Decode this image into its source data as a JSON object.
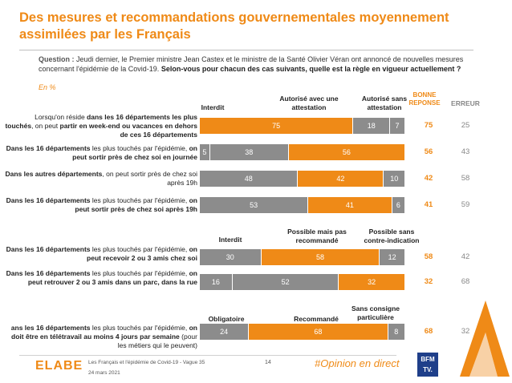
{
  "title": "Des mesures et recommandations gouvernementales moyennement assimilées par les Français",
  "question": {
    "label": "Question :",
    "context": " Jeudi dernier, le Premier ministre Jean Castex et le ministre de la Santé Olivier Véran ont annoncé de nouvelles mesures concernant l'épidémie de la Covid-19. ",
    "main": "Selon-vous pour chacun des cas suivants, quelle est la règle en vigueur actuellement ?"
  },
  "unit": "En %",
  "columns": {
    "correct": "BONNE REPONSE",
    "error": "ERREUR"
  },
  "colors": {
    "dark_gray": "#7f7f7f",
    "orange": "#ef8a17",
    "mid_gray": "#8c8c8c"
  },
  "chart_data": [
    {
      "type": "bar",
      "stacked": true,
      "orientation": "horizontal",
      "series_names": [
        "Interdit",
        "Autorisé avec une attestation",
        "Autorisé sans attestation"
      ],
      "rows": [
        {
          "label_parts": [
            {
              "t": "Lorsqu'on réside ",
              "b": false
            },
            {
              "t": "dans les 16 départements les plus touchés",
              "b": true
            },
            {
              "t": ", on peut ",
              "b": false
            },
            {
              "t": "partir en week-end ou vacances en dehors de ces 16 départements",
              "b": true
            }
          ],
          "values": [
            75,
            18,
            7
          ],
          "colors": [
            "#ef8a17",
            "#8c8c8c",
            "#8c8c8c"
          ],
          "correct": 75,
          "error": 25
        },
        {
          "label_parts": [
            {
              "t": "Dans les 16 départements",
              "b": true
            },
            {
              "t": " les plus touchés par l'épidémie, ",
              "b": false
            },
            {
              "t": "on peut sortir près de chez soi en journée",
              "b": true
            }
          ],
          "values": [
            5,
            38,
            56
          ],
          "colors": [
            "#8c8c8c",
            "#8c8c8c",
            "#ef8a17"
          ],
          "correct": 56,
          "error": 43
        },
        {
          "label_parts": [
            {
              "t": "Dans les autres départements",
              "b": true
            },
            {
              "t": ", on peut sortir près de chez soi après 19h",
              "b": false
            }
          ],
          "values": [
            48,
            42,
            10
          ],
          "colors": [
            "#8c8c8c",
            "#ef8a17",
            "#8c8c8c"
          ],
          "correct": 42,
          "error": 58
        },
        {
          "label_parts": [
            {
              "t": "Dans les 16 départements",
              "b": true
            },
            {
              "t": " les plus touchés par l'épidémie, ",
              "b": false
            },
            {
              "t": "on peut sortir près de chez soi après 19h",
              "b": true
            }
          ],
          "values": [
            53,
            41,
            6
          ],
          "colors": [
            "#8c8c8c",
            "#ef8a17",
            "#8c8c8c"
          ],
          "correct": 41,
          "error": 59
        }
      ]
    },
    {
      "type": "bar",
      "stacked": true,
      "orientation": "horizontal",
      "series_names": [
        "Interdit",
        "Possible mais pas recommandé",
        "Possible sans contre-indication"
      ],
      "rows": [
        {
          "label_parts": [
            {
              "t": "Dans les 16 départements",
              "b": true
            },
            {
              "t": " les plus touchés par l'épidémie, ",
              "b": false
            },
            {
              "t": "on peut recevoir 2 ou 3 amis chez soi",
              "b": true
            }
          ],
          "values": [
            30,
            58,
            12
          ],
          "colors": [
            "#8c8c8c",
            "#ef8a17",
            "#8c8c8c"
          ],
          "correct": 58,
          "error": 42
        },
        {
          "label_parts": [
            {
              "t": "Dans les 16 départements",
              "b": true
            },
            {
              "t": " les plus touchés par l'épidémie, ",
              "b": false
            },
            {
              "t": "on peut retrouver 2 ou 3 amis dans un parc, dans la rue",
              "b": true
            }
          ],
          "values": [
            16,
            52,
            32
          ],
          "colors": [
            "#8c8c8c",
            "#8c8c8c",
            "#ef8a17"
          ],
          "correct": 32,
          "error": 68
        }
      ]
    },
    {
      "type": "bar",
      "stacked": true,
      "orientation": "horizontal",
      "series_names": [
        "Obligatoire",
        "Recommandé",
        "Sans consigne particulière"
      ],
      "rows": [
        {
          "label_parts": [
            {
              "t": "ans les 16 départements",
              "b": true
            },
            {
              "t": " les plus touchés par l'épidémie, ",
              "b": false
            },
            {
              "t": "on doit être en télétravail au moins 4 jours par semaine",
              "b": true
            },
            {
              "t": " (pour les métiers qui le peuvent)",
              "b": false
            }
          ],
          "values": [
            24,
            68,
            8
          ],
          "colors": [
            "#8c8c8c",
            "#ef8a17",
            "#8c8c8c"
          ],
          "correct": 68,
          "error": 32
        }
      ]
    }
  ],
  "footer": {
    "logo": "ELABE",
    "source": "Les Français et l'épidémie de Covid-19 - Vague 35",
    "date": "24 mars 2021",
    "page": "14",
    "hashtag": "#Opinion en direct",
    "bfm_line1": "BFM",
    "bfm_line2": "TV."
  }
}
